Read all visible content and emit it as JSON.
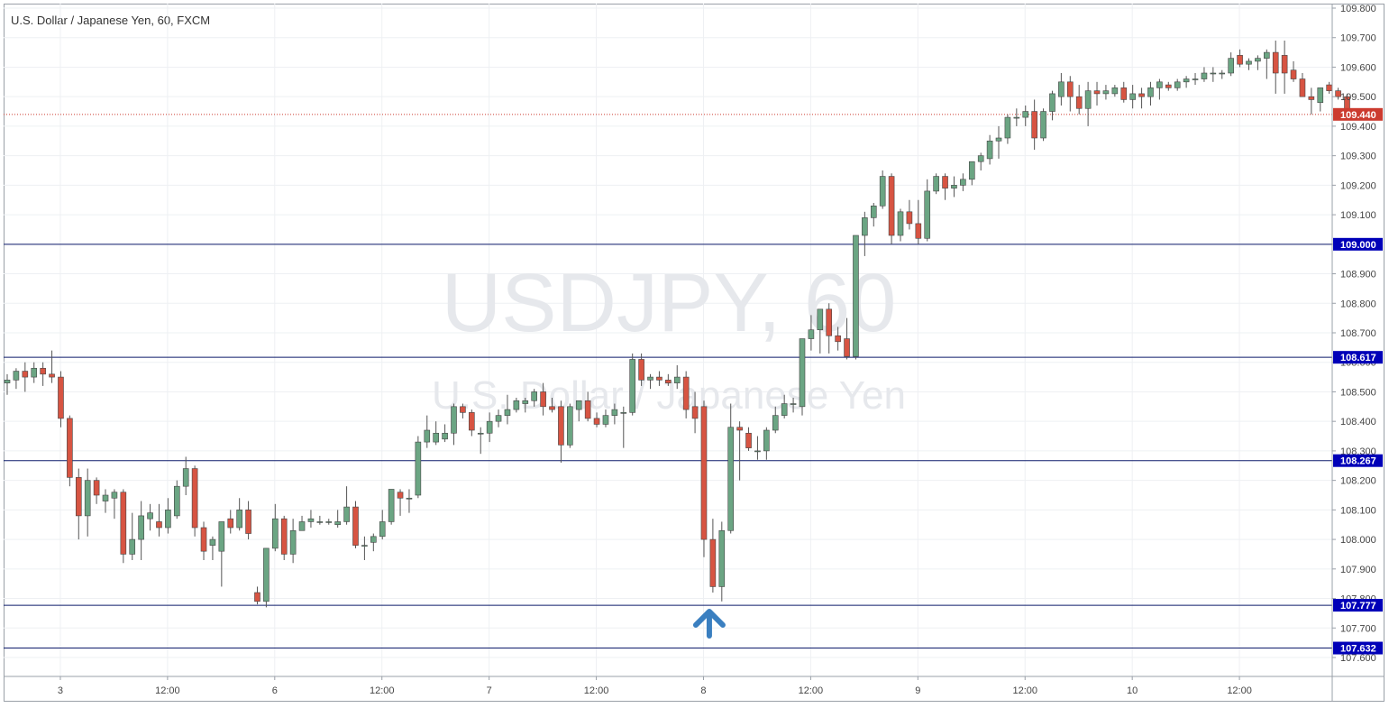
{
  "title": "U.S. Dollar / Japanese Yen, 60, FXCM",
  "watermark": {
    "symbol": "USDJPY, 60",
    "description": "U.S. Dollar / Japanese Yen"
  },
  "colors": {
    "up": "#6ba583",
    "down": "#d75442",
    "wick": "#555555",
    "level": "#0d1b6b",
    "current": "#cc3b2f",
    "label_bg": "#0000b8",
    "grid": "#eef0f3",
    "arrow": "#3a7fc0"
  },
  "chart_data": {
    "type": "candlestick",
    "symbol": "USDJPY",
    "timeframe": "60",
    "ylim": [
      107.6,
      109.8
    ],
    "y_ticks": [
      "107.600",
      "107.700",
      "107.800",
      "107.900",
      "108.000",
      "108.100",
      "108.200",
      "108.300",
      "108.400",
      "108.500",
      "108.600",
      "108.700",
      "108.800",
      "108.900",
      "109.000",
      "109.100",
      "109.200",
      "109.300",
      "109.400",
      "109.500",
      "109.600",
      "109.700",
      "109.800"
    ],
    "x_ticks": [
      {
        "label": "3",
        "bar": 6
      },
      {
        "label": "12:00",
        "bar": 18
      },
      {
        "label": "6",
        "bar": 30
      },
      {
        "label": "12:00",
        "bar": 42
      },
      {
        "label": "7",
        "bar": 54
      },
      {
        "label": "12:00",
        "bar": 66
      },
      {
        "label": "8",
        "bar": 78
      },
      {
        "label": "12:00",
        "bar": 90
      },
      {
        "label": "9",
        "bar": 102
      },
      {
        "label": "12:00",
        "bar": 114
      },
      {
        "label": "10",
        "bar": 126
      },
      {
        "label": "12:00",
        "bar": 138
      }
    ],
    "levels": [
      {
        "value": 109.0,
        "label": "109.000"
      },
      {
        "value": 108.617,
        "label": "108.617"
      },
      {
        "value": 108.267,
        "label": "108.267"
      },
      {
        "value": 107.777,
        "label": "107.777"
      },
      {
        "value": 107.632,
        "label": "107.632"
      }
    ],
    "current_price": {
      "value": 109.44,
      "label": "109.440"
    },
    "arrow_bar": 78.5,
    "ohlc": [
      [
        108.53,
        108.56,
        108.49,
        108.54
      ],
      [
        108.54,
        108.58,
        108.51,
        108.57
      ],
      [
        108.57,
        108.6,
        108.5,
        108.55
      ],
      [
        108.55,
        108.6,
        108.53,
        108.58
      ],
      [
        108.58,
        108.6,
        108.52,
        108.56
      ],
      [
        108.56,
        108.64,
        108.53,
        108.55
      ],
      [
        108.55,
        108.57,
        108.38,
        108.41
      ],
      [
        108.41,
        108.42,
        108.18,
        108.21
      ],
      [
        108.21,
        108.24,
        108.0,
        108.08
      ],
      [
        108.08,
        108.24,
        108.01,
        108.2
      ],
      [
        108.2,
        108.21,
        108.12,
        108.15
      ],
      [
        108.13,
        108.17,
        108.09,
        108.15
      ],
      [
        108.14,
        108.17,
        108.07,
        108.16
      ],
      [
        108.16,
        108.17,
        107.92,
        107.95
      ],
      [
        107.95,
        108.09,
        107.93,
        108.0
      ],
      [
        108.0,
        108.13,
        107.93,
        108.08
      ],
      [
        108.07,
        108.12,
        108.03,
        108.09
      ],
      [
        108.06,
        108.12,
        108.01,
        108.04
      ],
      [
        108.04,
        108.14,
        108.02,
        108.1
      ],
      [
        108.08,
        108.2,
        108.07,
        108.18
      ],
      [
        108.18,
        108.28,
        108.15,
        108.24
      ],
      [
        108.24,
        108.25,
        108.01,
        108.04
      ],
      [
        108.04,
        108.06,
        107.93,
        107.96
      ],
      [
        107.98,
        108.01,
        107.93,
        108.0
      ],
      [
        107.96,
        108.06,
        107.84,
        108.06
      ],
      [
        108.07,
        108.1,
        108.02,
        108.04
      ],
      [
        108.04,
        108.14,
        108.03,
        108.1
      ],
      [
        108.1,
        108.13,
        108.0,
        108.02
      ],
      [
        107.82,
        107.84,
        107.78,
        107.79
      ],
      [
        107.79,
        107.97,
        107.77,
        107.97
      ],
      [
        107.97,
        108.12,
        107.96,
        108.07
      ],
      [
        108.07,
        108.08,
        107.93,
        107.95
      ],
      [
        107.95,
        108.07,
        107.92,
        108.03
      ],
      [
        108.03,
        108.08,
        108.03,
        108.06
      ],
      [
        108.06,
        108.1,
        108.04,
        108.07
      ],
      [
        108.06,
        108.08,
        108.05,
        108.06
      ],
      [
        108.06,
        108.07,
        108.05,
        108.06
      ],
      [
        108.05,
        108.1,
        108.04,
        108.06
      ],
      [
        108.06,
        108.18,
        108.05,
        108.11
      ],
      [
        108.11,
        108.13,
        107.97,
        107.98
      ],
      [
        107.98,
        108.01,
        107.93,
        107.98
      ],
      [
        107.99,
        108.02,
        107.96,
        108.01
      ],
      [
        108.01,
        108.1,
        108.0,
        108.06
      ],
      [
        108.06,
        108.17,
        108.05,
        108.17
      ],
      [
        108.16,
        108.17,
        108.08,
        108.14
      ],
      [
        108.14,
        108.17,
        108.09,
        108.14
      ],
      [
        108.15,
        108.35,
        108.14,
        108.33
      ],
      [
        108.33,
        108.42,
        108.31,
        108.37
      ],
      [
        108.33,
        108.4,
        108.32,
        108.36
      ],
      [
        108.34,
        108.39,
        108.33,
        108.36
      ],
      [
        108.36,
        108.46,
        108.32,
        108.45
      ],
      [
        108.45,
        108.46,
        108.41,
        108.43
      ],
      [
        108.43,
        108.44,
        108.35,
        108.37
      ],
      [
        108.36,
        108.38,
        108.29,
        108.36
      ],
      [
        108.36,
        108.43,
        108.33,
        108.4
      ],
      [
        108.4,
        108.44,
        108.38,
        108.42
      ],
      [
        108.42,
        108.49,
        108.39,
        108.44
      ],
      [
        108.44,
        108.48,
        108.43,
        108.47
      ],
      [
        108.46,
        108.48,
        108.43,
        108.47
      ],
      [
        108.47,
        108.51,
        108.45,
        108.5
      ],
      [
        108.5,
        108.53,
        108.42,
        108.45
      ],
      [
        108.45,
        108.48,
        108.43,
        108.44
      ],
      [
        108.45,
        108.47,
        108.26,
        108.32
      ],
      [
        108.32,
        108.46,
        108.31,
        108.45
      ],
      [
        108.44,
        108.47,
        108.4,
        108.47
      ],
      [
        108.47,
        108.5,
        108.4,
        108.41
      ],
      [
        108.41,
        108.43,
        108.38,
        108.39
      ],
      [
        108.39,
        108.44,
        108.38,
        108.42
      ],
      [
        108.42,
        108.46,
        108.39,
        108.44
      ],
      [
        108.43,
        108.45,
        108.31,
        108.43
      ],
      [
        108.43,
        108.63,
        108.42,
        108.61
      ],
      [
        108.61,
        108.63,
        108.52,
        108.54
      ],
      [
        108.54,
        108.56,
        108.51,
        108.55
      ],
      [
        108.55,
        108.57,
        108.52,
        108.54
      ],
      [
        108.54,
        108.56,
        108.52,
        108.53
      ],
      [
        108.53,
        108.59,
        108.51,
        108.55
      ],
      [
        108.55,
        108.57,
        108.41,
        108.44
      ],
      [
        108.45,
        108.5,
        108.36,
        108.41
      ],
      [
        108.45,
        108.47,
        107.94,
        108.0
      ],
      [
        108.0,
        108.07,
        107.82,
        107.84
      ],
      [
        107.84,
        108.06,
        107.79,
        108.03
      ],
      [
        108.03,
        108.46,
        108.02,
        108.38
      ],
      [
        108.38,
        108.4,
        108.2,
        108.37
      ],
      [
        108.36,
        108.38,
        108.3,
        108.31
      ],
      [
        108.3,
        108.35,
        108.27,
        108.3
      ],
      [
        108.3,
        108.38,
        108.27,
        108.37
      ],
      [
        108.37,
        108.45,
        108.36,
        108.42
      ],
      [
        108.42,
        108.49,
        108.41,
        108.46
      ],
      [
        108.46,
        108.48,
        108.43,
        108.46
      ],
      [
        108.45,
        108.68,
        108.42,
        108.68
      ],
      [
        108.68,
        108.76,
        108.64,
        108.71
      ],
      [
        108.71,
        108.78,
        108.63,
        108.78
      ],
      [
        108.78,
        108.8,
        108.63,
        108.69
      ],
      [
        108.69,
        108.72,
        108.64,
        108.67
      ],
      [
        108.68,
        108.75,
        108.61,
        108.62
      ],
      [
        108.62,
        109.03,
        108.61,
        109.03
      ],
      [
        109.03,
        109.11,
        108.96,
        109.09
      ],
      [
        109.09,
        109.14,
        109.06,
        109.13
      ],
      [
        109.13,
        109.25,
        109.12,
        109.23
      ],
      [
        109.23,
        109.24,
        109.0,
        109.03
      ],
      [
        109.03,
        109.12,
        109.01,
        109.11
      ],
      [
        109.11,
        109.15,
        109.05,
        109.07
      ],
      [
        109.07,
        109.15,
        109.0,
        109.02
      ],
      [
        109.02,
        109.22,
        109.01,
        109.18
      ],
      [
        109.18,
        109.24,
        109.17,
        109.23
      ],
      [
        109.23,
        109.24,
        109.15,
        109.19
      ],
      [
        109.19,
        109.23,
        109.16,
        109.2
      ],
      [
        109.2,
        109.24,
        109.18,
        109.22
      ],
      [
        109.22,
        109.28,
        109.2,
        109.28
      ],
      [
        109.28,
        109.31,
        109.25,
        109.3
      ],
      [
        109.29,
        109.37,
        109.27,
        109.35
      ],
      [
        109.35,
        109.4,
        109.29,
        109.36
      ],
      [
        109.36,
        109.44,
        109.34,
        109.43
      ],
      [
        109.43,
        109.46,
        109.4,
        109.43
      ],
      [
        109.43,
        109.47,
        109.4,
        109.45
      ],
      [
        109.45,
        109.49,
        109.32,
        109.36
      ],
      [
        109.36,
        109.46,
        109.35,
        109.45
      ],
      [
        109.45,
        109.52,
        109.42,
        109.51
      ],
      [
        109.5,
        109.58,
        109.47,
        109.55
      ],
      [
        109.55,
        109.57,
        109.45,
        109.5
      ],
      [
        109.5,
        109.54,
        109.44,
        109.46
      ],
      [
        109.46,
        109.55,
        109.4,
        109.52
      ],
      [
        109.52,
        109.55,
        109.47,
        109.51
      ],
      [
        109.51,
        109.54,
        109.49,
        109.52
      ],
      [
        109.51,
        109.54,
        109.5,
        109.53
      ],
      [
        109.53,
        109.55,
        109.48,
        109.49
      ],
      [
        109.49,
        109.54,
        109.46,
        109.51
      ],
      [
        109.51,
        109.53,
        109.46,
        109.5
      ],
      [
        109.5,
        109.55,
        109.47,
        109.53
      ],
      [
        109.53,
        109.56,
        109.49,
        109.55
      ],
      [
        109.54,
        109.55,
        109.52,
        109.53
      ],
      [
        109.53,
        109.56,
        109.52,
        109.55
      ],
      [
        109.55,
        109.57,
        109.53,
        109.56
      ],
      [
        109.56,
        109.58,
        109.54,
        109.56
      ],
      [
        109.56,
        109.6,
        109.55,
        109.58
      ],
      [
        109.58,
        109.6,
        109.55,
        109.58
      ],
      [
        109.58,
        109.59,
        109.56,
        109.58
      ],
      [
        109.58,
        109.65,
        109.57,
        109.63
      ],
      [
        109.64,
        109.66,
        109.6,
        109.61
      ],
      [
        109.61,
        109.63,
        109.59,
        109.62
      ],
      [
        109.62,
        109.64,
        109.59,
        109.63
      ],
      [
        109.63,
        109.66,
        109.56,
        109.65
      ],
      [
        109.65,
        109.69,
        109.51,
        109.58
      ],
      [
        109.64,
        109.69,
        109.51,
        109.58
      ],
      [
        109.59,
        109.62,
        109.55,
        109.56
      ],
      [
        109.56,
        109.58,
        109.5,
        109.5
      ],
      [
        109.5,
        109.53,
        109.44,
        109.49
      ],
      [
        109.48,
        109.53,
        109.45,
        109.53
      ],
      [
        109.54,
        109.55,
        109.51,
        109.52
      ],
      [
        109.52,
        109.53,
        109.49,
        109.5
      ],
      [
        109.5,
        109.51,
        109.44,
        109.44
      ]
    ]
  }
}
